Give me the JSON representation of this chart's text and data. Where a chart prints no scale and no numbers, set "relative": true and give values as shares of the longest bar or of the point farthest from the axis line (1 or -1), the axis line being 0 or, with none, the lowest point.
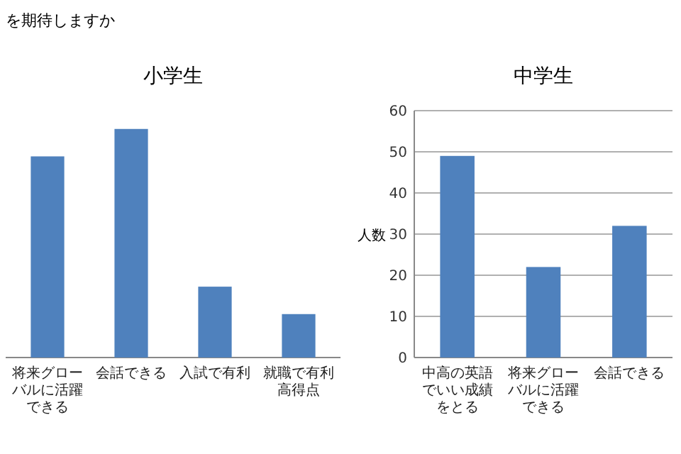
{
  "chart_data": [
    {
      "type": "bar",
      "title": "小学生",
      "annotations": [
        "を期待しますか"
      ],
      "relative": true,
      "color": "#4f81bd",
      "categories": [
        "将来グローバルに活躍できる",
        "会話できる",
        "入試で有利",
        "就職で有利高得点"
      ],
      "values": [
        0.88,
        1,
        0.31,
        0.19
      ]
    },
    {
      "type": "bar",
      "title": "中学生",
      "ylabel": "人数",
      "color": "#4f81bd",
      "grid": "y",
      "categories": [
        "中高の英語でいい成績をとる",
        "将来グローバルに活躍できる",
        "会話できる"
      ],
      "values": [
        49,
        22,
        32
      ],
      "ylim": [
        0,
        60
      ],
      "yticks": [
        0,
        10,
        20,
        30,
        40,
        50,
        60
      ]
    }
  ]
}
